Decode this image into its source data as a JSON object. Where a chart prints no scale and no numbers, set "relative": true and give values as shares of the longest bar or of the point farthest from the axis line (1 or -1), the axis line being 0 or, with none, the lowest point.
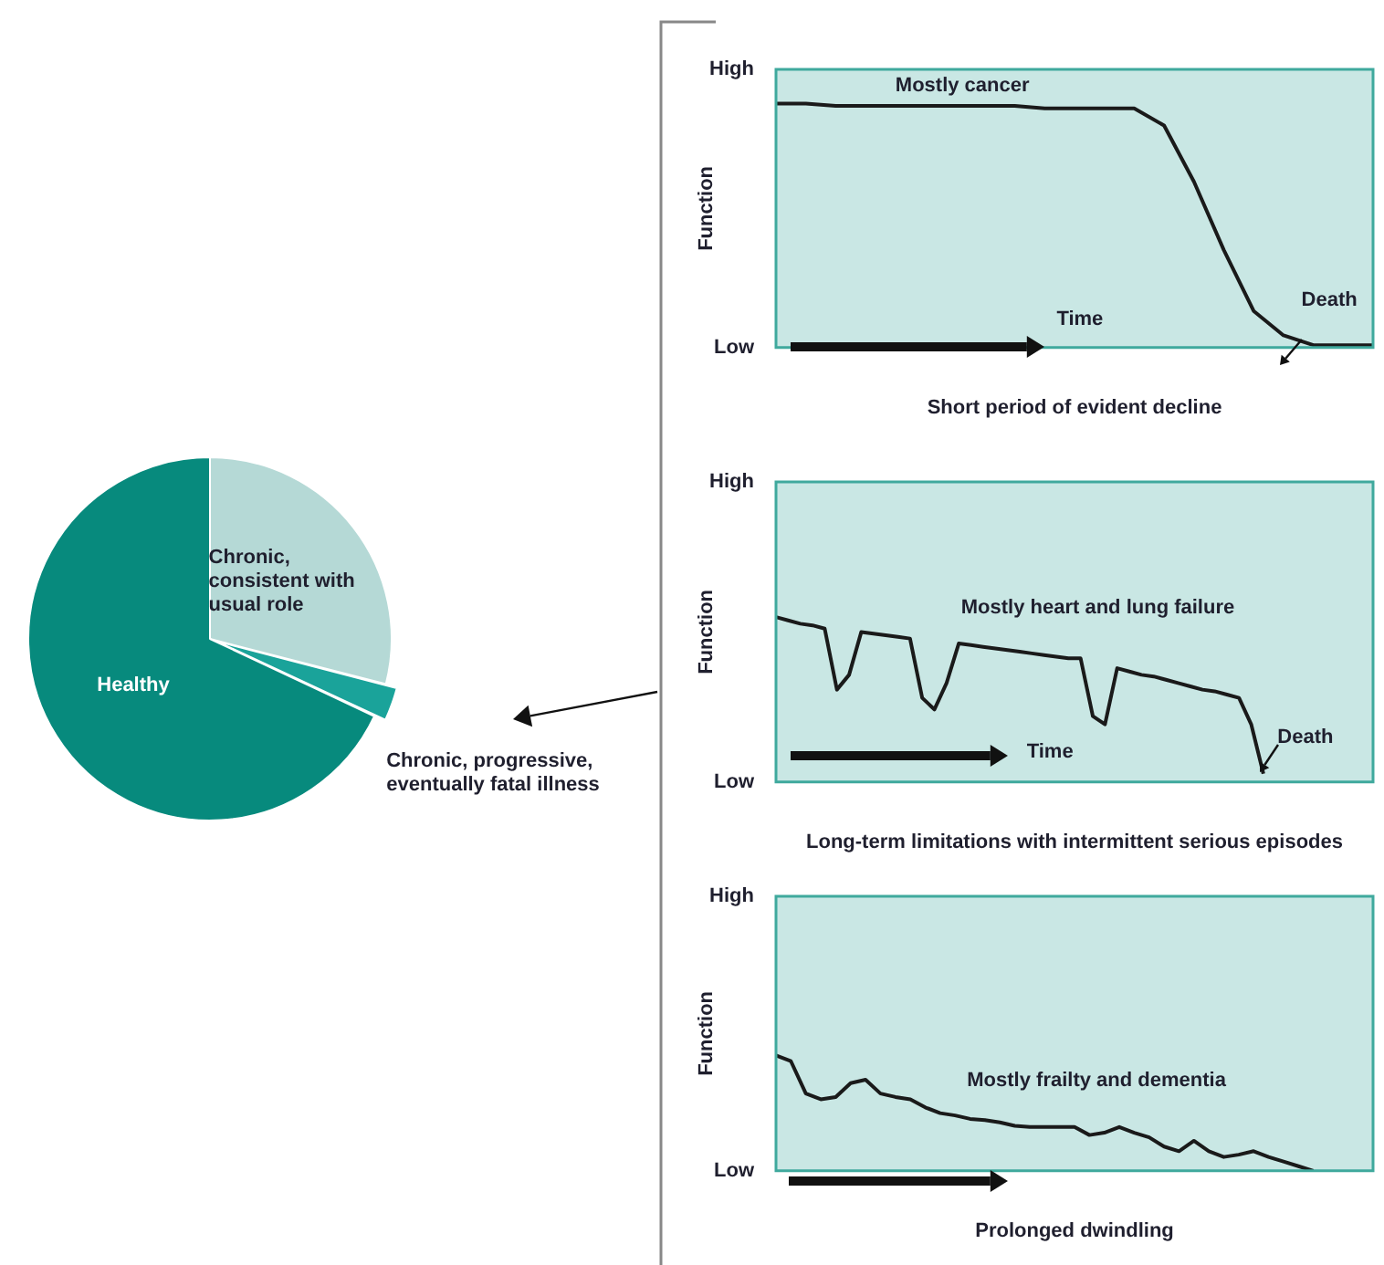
{
  "chart_data": [
    {
      "type": "pie",
      "categories": [
        "Chronic, consistent with usual role",
        "Chronic, progressive, eventually fatal illness",
        "Healthy"
      ],
      "values": [
        29,
        3,
        68
      ],
      "colors": [
        "#b5d9d6",
        "#1aa39a",
        "#078a7d"
      ]
    },
    {
      "type": "line",
      "relative": true,
      "xlabel": "Short period of evident decline",
      "ylabel": "Function",
      "annotations": [
        "High",
        "Low",
        "Mostly cancer",
        "Time",
        "Death"
      ],
      "categories": [
        null,
        null,
        null,
        null,
        null,
        null,
        null,
        null,
        null,
        null,
        null,
        null,
        null,
        null,
        null,
        null,
        null,
        null,
        null,
        null,
        null
      ],
      "series": [
        {
          "color": "#1a1a1a",
          "values": [
            1,
            1,
            0.99,
            0.99,
            0.99,
            0.99,
            0.99,
            0.99,
            0.99,
            0.98,
            0.98,
            0.98,
            0.98,
            0.91,
            0.68,
            0.4,
            0.15,
            0.05,
            0.01,
            0.01,
            0.01
          ]
        }
      ],
      "marker": "none",
      "line_style": "solid"
    },
    {
      "type": "line",
      "relative": true,
      "xlabel": "Long-term limitations with intermittent serious episodes",
      "ylabel": "Function",
      "annotations": [
        "High",
        "Low",
        "Mostly heart and lung failure",
        "Time",
        "Death"
      ],
      "categories": [
        null,
        null,
        null,
        null,
        null,
        null,
        null,
        null,
        null,
        null,
        null,
        null,
        null,
        null,
        null,
        null,
        null,
        null,
        null,
        null,
        null,
        null,
        null,
        null,
        null,
        null,
        null,
        null,
        null,
        null,
        null,
        null,
        null,
        null,
        null,
        null,
        null,
        null,
        null,
        null,
        null,
        null,
        null,
        null,
        null,
        null,
        null,
        null,
        null,
        null
      ],
      "series": [
        {
          "color": "#1a1a1a",
          "values": [
            1,
            0.98,
            0.96,
            0.95,
            0.93,
            0.56,
            0.65,
            0.91,
            0.9,
            0.89,
            0.88,
            0.87,
            0.51,
            0.44,
            0.6,
            0.84,
            0.83,
            0.82,
            0.81,
            0.8,
            0.79,
            0.78,
            0.77,
            0.76,
            0.75,
            0.75,
            0.4,
            0.35,
            0.69,
            0.67,
            0.65,
            0.64,
            0.62,
            0.6,
            0.58,
            0.56,
            0.55,
            0.53,
            0.51,
            0.35,
            0.05,
            null,
            null,
            null,
            null,
            null,
            null,
            null,
            null,
            null
          ]
        }
      ],
      "marker": "none",
      "line_style": "solid"
    },
    {
      "type": "line",
      "relative": true,
      "xlabel": "Prolonged dwindling",
      "ylabel": "Function",
      "annotations": [
        "High",
        "Low",
        "Mostly frailty and dementia"
      ],
      "categories": [
        null,
        null,
        null,
        null,
        null,
        null,
        null,
        null,
        null,
        null,
        null,
        null,
        null,
        null,
        null,
        null,
        null,
        null,
        null,
        null,
        null,
        null,
        null,
        null,
        null,
        null,
        null,
        null,
        null,
        null,
        null,
        null,
        null,
        null,
        null,
        null,
        null,
        null,
        null,
        null,
        null
      ],
      "series": [
        {
          "color": "#1a1a1a",
          "values": [
            1,
            0.95,
            0.67,
            0.62,
            0.64,
            0.76,
            0.79,
            0.67,
            0.64,
            0.62,
            0.55,
            0.5,
            0.48,
            0.45,
            0.44,
            0.42,
            0.39,
            0.38,
            0.38,
            0.38,
            0.38,
            0.31,
            0.33,
            0.38,
            0.33,
            0.29,
            0.21,
            0.17,
            0.26,
            0.17,
            0.12,
            0.14,
            0.17,
            0.12,
            0.08,
            0.04,
            0,
            null,
            null,
            null,
            null
          ]
        }
      ],
      "marker": "none",
      "line_style": "solid"
    }
  ]
}
